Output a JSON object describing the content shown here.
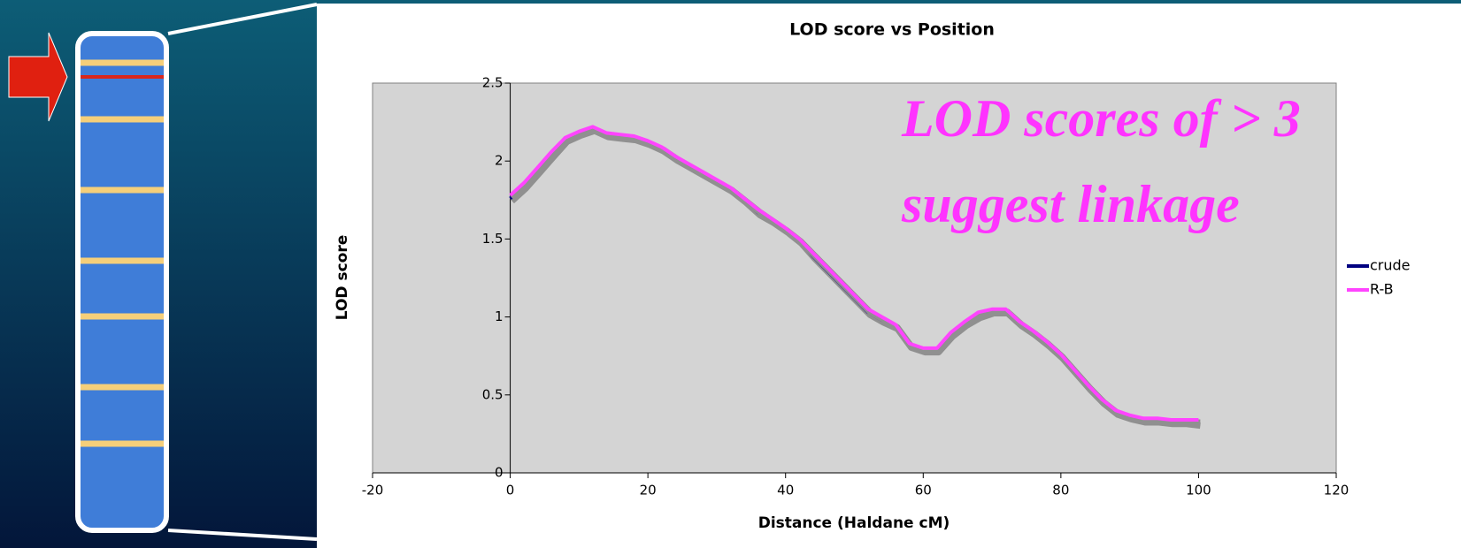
{
  "chart_data": {
    "type": "line",
    "title": "LOD score vs Position",
    "x_label": "Distance (Haldane cM)",
    "y_label": "LOD score",
    "annotation": [
      "LOD scores of > 3",
      "suggest linkage"
    ],
    "annotation_color": "#ff33ff",
    "x": [
      0,
      2,
      4,
      6,
      8,
      10,
      12,
      14,
      16,
      18,
      20,
      22,
      24,
      26,
      28,
      30,
      32,
      34,
      36,
      38,
      40,
      42,
      44,
      46,
      48,
      50,
      52,
      54,
      56,
      58,
      60,
      62,
      64,
      66,
      68,
      70,
      72,
      74,
      76,
      78,
      80,
      82,
      84,
      86,
      88,
      90,
      92,
      94,
      96,
      98,
      100
    ],
    "series": [
      {
        "name": "crude",
        "color": "#000080",
        "values": [
          1.76,
          1.84,
          1.94,
          2.04,
          2.14,
          2.18,
          2.21,
          2.17,
          2.16,
          2.15,
          2.12,
          2.08,
          2.02,
          1.97,
          1.92,
          1.87,
          1.82,
          1.75,
          1.67,
          1.62,
          1.56,
          1.49,
          1.39,
          1.3,
          1.21,
          1.12,
          1.03,
          0.98,
          0.94,
          0.82,
          0.79,
          0.79,
          0.89,
          0.96,
          1.01,
          1.04,
          1.04,
          0.96,
          0.9,
          0.83,
          0.75,
          0.65,
          0.55,
          0.46,
          0.39,
          0.36,
          0.34,
          0.34,
          0.33,
          0.33,
          0.32
        ]
      },
      {
        "name": "R-B",
        "color": "#ff44ff",
        "values": [
          1.78,
          1.86,
          1.96,
          2.06,
          2.15,
          2.19,
          2.22,
          2.18,
          2.17,
          2.16,
          2.13,
          2.09,
          2.03,
          1.98,
          1.93,
          1.88,
          1.83,
          1.76,
          1.69,
          1.63,
          1.57,
          1.5,
          1.41,
          1.32,
          1.23,
          1.14,
          1.05,
          1.0,
          0.95,
          0.83,
          0.8,
          0.8,
          0.9,
          0.97,
          1.03,
          1.05,
          1.05,
          0.97,
          0.91,
          0.84,
          0.76,
          0.66,
          0.56,
          0.47,
          0.4,
          0.37,
          0.35,
          0.35,
          0.34,
          0.34,
          0.34
        ]
      }
    ],
    "xlim": [
      -20,
      120
    ],
    "xticks": [
      -20,
      0,
      20,
      40,
      60,
      80,
      100,
      120
    ],
    "ylim": [
      0,
      2.5
    ],
    "yticks": [
      0,
      0.5,
      1,
      1.5,
      2,
      2.5
    ],
    "grid": false,
    "plot_background": "#d4d4d4",
    "legend": "right"
  }
}
